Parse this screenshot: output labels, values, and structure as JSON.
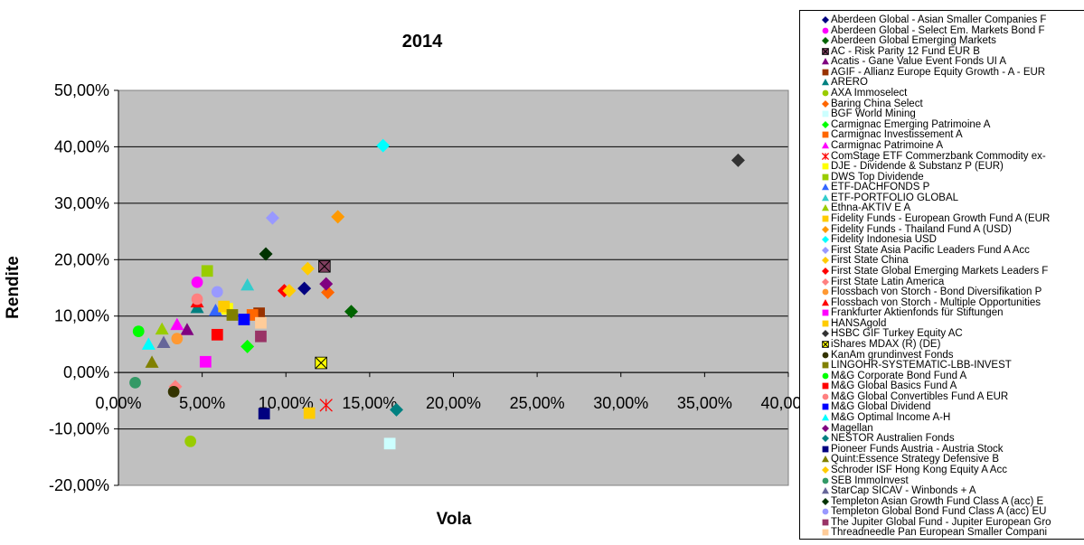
{
  "chart_data": {
    "type": "scatter",
    "title": "2014",
    "xlabel": "Vola",
    "ylabel": "Rendite",
    "xlim": [
      0,
      0.4
    ],
    "ylim": [
      -0.2,
      0.5
    ],
    "x_ticks": [
      "0,00%",
      "5,00%",
      "10,00%",
      "15,00%",
      "20,00%",
      "25,00%",
      "30,00%",
      "35,00%",
      "40,00%"
    ],
    "y_ticks": [
      "50,00%",
      "40,00%",
      "30,00%",
      "20,00%",
      "10,00%",
      "0,00%",
      "-10,00%",
      "-20,00%"
    ],
    "grid": "horizontal",
    "legend_position": "right",
    "series": [
      {
        "name": "Aberdeen Global - Asian Smaller Companies F",
        "color": "#000080",
        "marker": "diamond",
        "x": 0.111,
        "y": 0.149
      },
      {
        "name": "Aberdeen Global - Select Em. Markets Bond F",
        "color": "#ff00ff",
        "marker": "circle",
        "x": 0.047,
        "y": 0.16
      },
      {
        "name": "Aberdeen Global Emerging Markets",
        "color": "#006400",
        "marker": "diamond",
        "x": 0.139,
        "y": 0.108
      },
      {
        "name": "AC - Risk Parity 12 Fund EUR B",
        "color": "#7f3f5f",
        "marker": "square-x",
        "x": 0.123,
        "y": 0.188
      },
      {
        "name": "Acatis - Gane Value Event Fonds UI A",
        "color": "#800080",
        "marker": "triangle",
        "x": 0.041,
        "y": 0.076
      },
      {
        "name": "AGIF - Allianz Europe Equity Growth - A - EUR",
        "color": "#993300",
        "marker": "square",
        "x": 0.084,
        "y": 0.105
      },
      {
        "name": "ARERO",
        "color": "#008080",
        "marker": "triangle",
        "x": 0.047,
        "y": 0.115
      },
      {
        "name": "AXA Immoselect",
        "color": "#99cc00",
        "marker": "circle",
        "x": 0.043,
        "y": -0.122
      },
      {
        "name": "Baring China Select",
        "color": "#ff6600",
        "marker": "diamond",
        "x": 0.125,
        "y": 0.142
      },
      {
        "name": "BGF World Mining",
        "color": "#ccffff",
        "marker": "square",
        "x": 0.162,
        "y": -0.126
      },
      {
        "name": "Carmignac Emerging Patrimoine A",
        "color": "#00ff00",
        "marker": "diamond",
        "x": 0.077,
        "y": 0.046
      },
      {
        "name": "Carmignac Investissement A",
        "color": "#ff6600",
        "marker": "square",
        "x": 0.08,
        "y": 0.102
      },
      {
        "name": "Carmignac Patrimoine A",
        "color": "#ff00ff",
        "marker": "triangle",
        "x": 0.035,
        "y": 0.085
      },
      {
        "name": "ComStage ETF Commerzbank Commodity ex-",
        "color": "#ff0000",
        "marker": "star",
        "x": 0.124,
        "y": -0.058
      },
      {
        "name": "DJE - Dividende & Substanz P (EUR)",
        "color": "#ffff00",
        "marker": "square",
        "x": 0.065,
        "y": 0.113
      },
      {
        "name": "DWS Top Dividende",
        "color": "#99cc00",
        "marker": "square",
        "x": 0.053,
        "y": 0.18
      },
      {
        "name": "ETF-DACHFONDS P",
        "color": "#3366ff",
        "marker": "triangle",
        "x": 0.058,
        "y": 0.11
      },
      {
        "name": "ETF-PORTFOLIO GLOBAL",
        "color": "#33cccc",
        "marker": "triangle",
        "x": 0.077,
        "y": 0.155
      },
      {
        "name": "Ethna-AKTIV E A",
        "color": "#99cc00",
        "marker": "triangle",
        "x": 0.026,
        "y": 0.077
      },
      {
        "name": "Fidelity Funds - European Growth Fund A (EUR",
        "color": "#ffcc00",
        "marker": "square",
        "x": 0.114,
        "y": -0.072
      },
      {
        "name": "Fidelity Funds - Thailand Fund A (USD)",
        "color": "#ff9900",
        "marker": "diamond",
        "x": 0.131,
        "y": 0.276
      },
      {
        "name": "Fidelity Indonesia USD",
        "color": "#00ffff",
        "marker": "diamond",
        "x": 0.158,
        "y": 0.402
      },
      {
        "name": "First State Asia Pacific Leaders Fund A Acc",
        "color": "#9999ff",
        "marker": "diamond",
        "x": 0.092,
        "y": 0.274
      },
      {
        "name": "First State China",
        "color": "#ffcc00",
        "marker": "diamond",
        "x": 0.113,
        "y": 0.184
      },
      {
        "name": "First State Global Emerging Markets Leaders F",
        "color": "#ff0000",
        "marker": "diamond",
        "x": 0.099,
        "y": 0.145
      },
      {
        "name": "First State Latin America",
        "color": "#ff8080",
        "marker": "diamond",
        "x": 0.034,
        "y": -0.025
      },
      {
        "name": "Flossbach von Storch - Bond Diversifikation P",
        "color": "#ff9933",
        "marker": "circle",
        "x": 0.035,
        "y": 0.06
      },
      {
        "name": "Flossbach von Storch - Multiple Opportunities",
        "color": "#ff0000",
        "marker": "triangle",
        "x": 0.047,
        "y": 0.125
      },
      {
        "name": "Frankfurter Aktienfonds für Stiftungen",
        "color": "#ff00ff",
        "marker": "square",
        "x": 0.052,
        "y": 0.019
      },
      {
        "name": "HANSAgold",
        "color": "#ffcc00",
        "marker": "square",
        "x": 0.063,
        "y": 0.117
      },
      {
        "name": "HSBC GIF Turkey Equity AC",
        "color": "#333333",
        "marker": "diamond",
        "x": 0.37,
        "y": 0.376
      },
      {
        "name": "iShares MDAX (R) (DE)",
        "color": "#ffff00",
        "marker": "square-x",
        "x": 0.121,
        "y": 0.017
      },
      {
        "name": "KanAm grundinvest Fonds",
        "color": "#333300",
        "marker": "circle",
        "x": 0.033,
        "y": -0.034
      },
      {
        "name": "LINGOHR-SYSTEMATIC-LBB-INVEST",
        "color": "#808000",
        "marker": "square",
        "x": 0.068,
        "y": 0.102
      },
      {
        "name": "M&G Corporate Bond Fund A",
        "color": "#00ff00",
        "marker": "circle",
        "x": 0.012,
        "y": 0.073
      },
      {
        "name": "M&G Global Basics Fund A",
        "color": "#ff0000",
        "marker": "square",
        "x": 0.059,
        "y": 0.067
      },
      {
        "name": "M&G Global Convertibles Fund A EUR",
        "color": "#ff8080",
        "marker": "circle",
        "x": 0.047,
        "y": 0.13
      },
      {
        "name": "M&G Global Dividend",
        "color": "#0000ff",
        "marker": "square",
        "x": 0.075,
        "y": 0.094
      },
      {
        "name": "M&G Optimal Income A-H",
        "color": "#00ffff",
        "marker": "triangle",
        "x": 0.018,
        "y": 0.05
      },
      {
        "name": "Magellan",
        "color": "#800080",
        "marker": "diamond",
        "x": 0.124,
        "y": 0.157
      },
      {
        "name": "NESTOR Australien Fonds",
        "color": "#008080",
        "marker": "diamond",
        "x": 0.166,
        "y": -0.066
      },
      {
        "name": "Pioneer Funds Austria - Austria Stock",
        "color": "#000080",
        "marker": "square",
        "x": 0.087,
        "y": -0.073
      },
      {
        "name": "Quint:Essence Strategy Defensive B",
        "color": "#808000",
        "marker": "triangle",
        "x": 0.02,
        "y": 0.018
      },
      {
        "name": "Schroder ISF Hong Kong Equity A Acc",
        "color": "#ffcc00",
        "marker": "diamond",
        "x": 0.102,
        "y": 0.145
      },
      {
        "name": "SEB ImmoInvest",
        "color": "#339966",
        "marker": "circle",
        "x": 0.01,
        "y": -0.018
      },
      {
        "name": "StarCap SICAV - Winbonds + A",
        "color": "#666699",
        "marker": "triangle",
        "x": 0.027,
        "y": 0.053
      },
      {
        "name": "Templeton Asian Growth Fund Class A (acc) E",
        "color": "#003300",
        "marker": "diamond",
        "x": 0.088,
        "y": 0.21
      },
      {
        "name": "Templeton Global Bond Fund Class A (acc) EU",
        "color": "#9999ff",
        "marker": "circle",
        "x": 0.059,
        "y": 0.143
      },
      {
        "name": "The Jupiter Global Fund - Jupiter European Gro",
        "color": "#993366",
        "marker": "square",
        "x": 0.085,
        "y": 0.064
      },
      {
        "name": "Threadneedle Pan European Smaller Compani",
        "color": "#ffcc99",
        "marker": "square",
        "x": 0.085,
        "y": 0.088
      }
    ]
  }
}
